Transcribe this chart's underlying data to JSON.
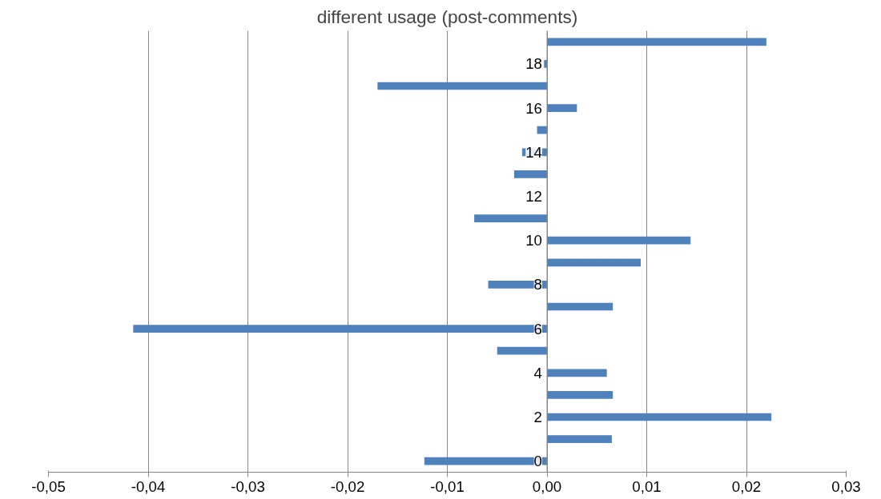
{
  "chart_data": {
    "type": "bar",
    "orientation": "horizontal",
    "title": "different usage (post-comments)",
    "categories": [
      null,
      "18",
      null,
      "16",
      null,
      "14",
      null,
      "12",
      null,
      "10",
      null,
      "8",
      null,
      "6",
      null,
      "4",
      null,
      "2",
      null,
      "0"
    ],
    "values": [
      0.022,
      -0.0003,
      -0.017,
      0.003,
      -0.001,
      -0.0025,
      -0.0033,
      0,
      -0.0073,
      0.0144,
      0.0094,
      -0.0059,
      0.0066,
      -0.0415,
      -0.005,
      0.006,
      0.0066,
      0.0225,
      0.0065,
      -0.0123
    ],
    "color": "#4f81bd",
    "xlim": [
      -0.05,
      0.03
    ],
    "xticks": [
      {
        "value": -0.05,
        "label": "-0,05"
      },
      {
        "value": -0.04,
        "label": "-0,04"
      },
      {
        "value": -0.03,
        "label": "-0,03"
      },
      {
        "value": -0.02,
        "label": "-0,02"
      },
      {
        "value": -0.01,
        "label": "-0,01"
      },
      {
        "value": 0,
        "label": "0,00"
      },
      {
        "value": 0.01,
        "label": "0,01"
      },
      {
        "value": 0.02,
        "label": "0,02"
      },
      {
        "value": 0.03,
        "label": "0,03"
      }
    ],
    "grid": "x"
  }
}
